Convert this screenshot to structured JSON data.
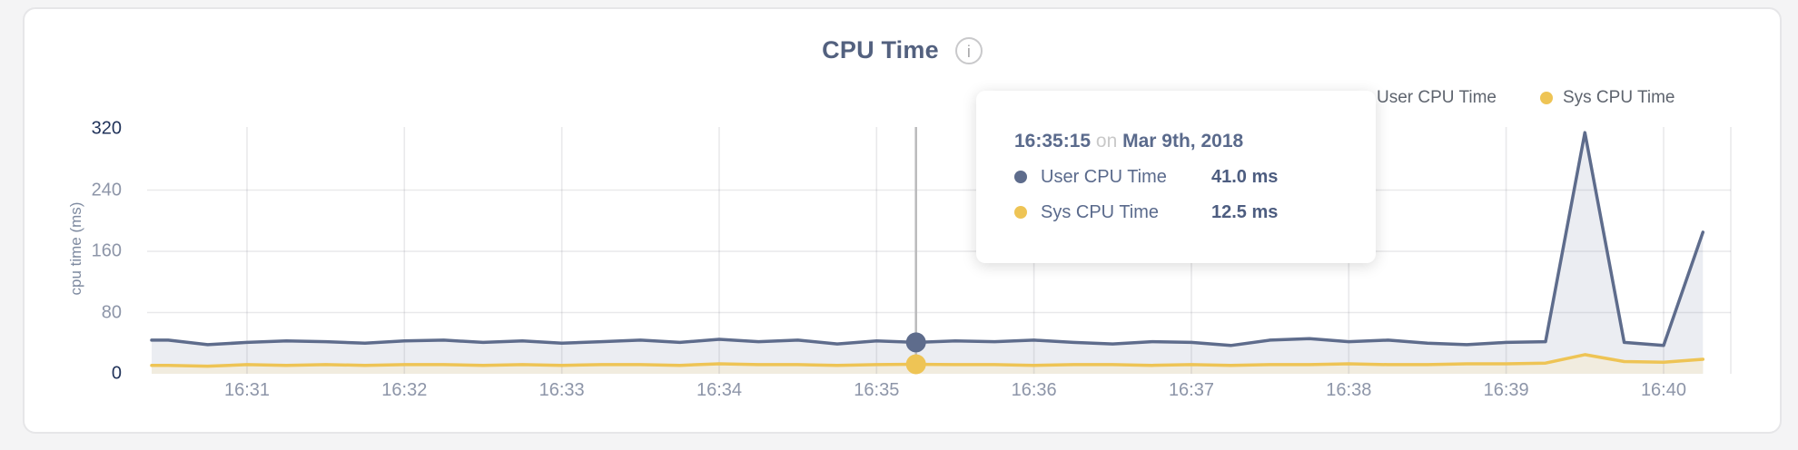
{
  "page_bg": "#f4f4f5",
  "chart": {
    "title": "CPU Time",
    "info_glyph": "i",
    "y_axis_label": "cpu time (ms)",
    "legend": [
      {
        "label": "User CPU Time",
        "color": "#5e6c8c"
      },
      {
        "label": "Sys CPU Time",
        "color": "#eec455"
      }
    ]
  },
  "tooltip": {
    "time": "16:35:15",
    "on_word": "on",
    "date": "Mar 9th, 2018",
    "rows": [
      {
        "label": "User CPU Time",
        "value": "41.0 ms",
        "color": "#5e6c8c"
      },
      {
        "label": "Sys CPU Time",
        "value": "12.5 ms",
        "color": "#eec455"
      }
    ]
  },
  "chart_data": {
    "type": "area",
    "title": "CPU Time",
    "ylabel": "cpu time (ms)",
    "ylim": [
      0,
      320
    ],
    "y_ticks": [
      0,
      80,
      160,
      240,
      320
    ],
    "x_ticks": [
      "16:31",
      "16:32",
      "16:33",
      "16:34",
      "16:35",
      "16:36",
      "16:37",
      "16:38",
      "16:39",
      "16:40"
    ],
    "grid": true,
    "legend_position": "top-right",
    "x": [
      "16:30:30",
      "16:30:45",
      "16:31:00",
      "16:31:15",
      "16:31:30",
      "16:31:45",
      "16:32:00",
      "16:32:15",
      "16:32:30",
      "16:32:45",
      "16:33:00",
      "16:33:15",
      "16:33:30",
      "16:33:45",
      "16:34:00",
      "16:34:15",
      "16:34:30",
      "16:34:45",
      "16:35:00",
      "16:35:15",
      "16:35:30",
      "16:35:45",
      "16:36:00",
      "16:36:15",
      "16:36:30",
      "16:36:45",
      "16:37:00",
      "16:37:15",
      "16:37:30",
      "16:37:45",
      "16:38:00",
      "16:38:15",
      "16:38:30",
      "16:38:45",
      "16:39:00",
      "16:39:15",
      "16:39:30",
      "16:39:45",
      "16:40:00",
      "16:40:15"
    ],
    "series": [
      {
        "id": "user",
        "name": "User CPU Time",
        "unit": "ms",
        "color": "#5e6c8c",
        "fill": "#ebedf2",
        "values": [
          44,
          38,
          41,
          43,
          42,
          40,
          43,
          44,
          41,
          43,
          40,
          42,
          44,
          41,
          45,
          42,
          44,
          39,
          43,
          41,
          43,
          42,
          44,
          41,
          39,
          42,
          41,
          37,
          44,
          46,
          42,
          44,
          40,
          38,
          41,
          42,
          315,
          41,
          37,
          185
        ]
      },
      {
        "id": "sys",
        "name": "Sys CPU Time",
        "unit": "ms",
        "color": "#eec455",
        "fill": "#f1ecdf",
        "values": [
          11,
          10,
          12,
          11,
          12,
          11,
          12,
          12,
          11,
          12,
          11,
          12,
          12,
          11,
          13,
          12,
          12,
          11,
          12,
          12.5,
          12,
          12,
          11,
          12,
          12,
          11,
          12,
          11,
          12,
          12,
          13,
          12,
          12,
          13,
          13,
          14,
          25,
          16,
          15,
          19
        ]
      }
    ],
    "hover": {
      "index": 19,
      "time": "16:35:15",
      "date": "Mar 9th, 2018",
      "values_ms": [
        41.0,
        12.5
      ]
    }
  }
}
